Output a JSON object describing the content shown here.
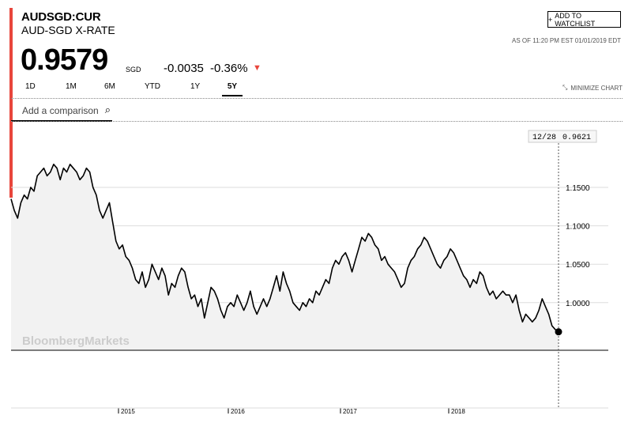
{
  "header": {
    "ticker": "AUDSGD:CUR",
    "subtitle": "AUD-SGD X-RATE",
    "price": "0.9579",
    "currency": "SGD",
    "change": "-0.0035",
    "change_pct": "-0.36%",
    "watchlist_label": "ADD TO WATCHLIST",
    "as_of": "AS OF 11:20 PM EST 01/01/2019 EDT"
  },
  "colors": {
    "accent": "#e8463c",
    "line": "#000000",
    "fill": "#f2f2f2"
  },
  "ranges": [
    "1D",
    "1M",
    "6M",
    "YTD",
    "1Y",
    "5Y"
  ],
  "active_range": "5Y",
  "minimize_label": "MINIMIZE CHART",
  "comparison_placeholder": "Add a comparison",
  "watermark": "BloombergMarkets",
  "chart_data": {
    "type": "area",
    "x_labels": [
      "2015",
      "2016",
      "2017",
      "2018"
    ],
    "y_ticks": [
      1.15,
      1.1,
      1.05,
      1.0
    ],
    "y_tick_labels": [
      "1.1500",
      "1.1000",
      "1.0500",
      "1.0000"
    ],
    "ylim": [
      0.94,
      1.2
    ],
    "current_marker": {
      "date_label": "12/28",
      "value_label": "0.9621"
    },
    "grid": true,
    "series": [
      {
        "values": [
          1.135,
          1.12,
          1.11,
          1.13,
          1.14,
          1.135,
          1.15,
          1.145,
          1.165,
          1.17,
          1.175,
          1.165,
          1.17,
          1.18,
          1.175,
          1.16,
          1.175,
          1.17,
          1.18,
          1.175,
          1.17,
          1.16,
          1.165,
          1.175,
          1.17,
          1.15,
          1.14,
          1.12,
          1.11,
          1.12,
          1.13,
          1.105,
          1.08,
          1.07,
          1.075,
          1.06,
          1.055,
          1.045,
          1.03,
          1.025,
          1.04,
          1.02,
          1.03,
          1.05,
          1.04,
          1.03,
          1.045,
          1.035,
          1.01,
          1.025,
          1.02,
          1.035,
          1.045,
          1.04,
          1.02,
          1.005,
          1.01,
          0.995,
          1.005,
          0.98,
          1.0,
          1.02,
          1.015,
          1.005,
          0.99,
          0.98,
          0.995,
          1.0,
          0.995,
          1.01,
          1.0,
          0.99,
          1.0,
          1.015,
          0.995,
          0.985,
          0.995,
          1.005,
          0.995,
          1.005,
          1.02,
          1.035,
          1.015,
          1.04,
          1.025,
          1.015,
          1.0,
          0.995,
          0.99,
          1.0,
          0.995,
          1.005,
          1.0,
          1.015,
          1.01,
          1.02,
          1.03,
          1.025,
          1.045,
          1.055,
          1.05,
          1.06,
          1.065,
          1.055,
          1.04,
          1.055,
          1.07,
          1.085,
          1.08,
          1.09,
          1.085,
          1.075,
          1.07,
          1.055,
          1.06,
          1.05,
          1.045,
          1.04,
          1.03,
          1.02,
          1.025,
          1.045,
          1.055,
          1.06,
          1.07,
          1.075,
          1.085,
          1.08,
          1.07,
          1.06,
          1.05,
          1.045,
          1.055,
          1.06,
          1.07,
          1.065,
          1.055,
          1.045,
          1.035,
          1.03,
          1.02,
          1.03,
          1.025,
          1.04,
          1.035,
          1.02,
          1.01,
          1.015,
          1.005,
          1.01,
          1.015,
          1.01,
          1.01,
          1.0,
          1.01,
          0.99,
          0.975,
          0.985,
          0.98,
          0.975,
          0.98,
          0.99,
          1.005,
          0.995,
          0.985,
          0.97,
          0.965,
          0.9621
        ]
      }
    ]
  }
}
